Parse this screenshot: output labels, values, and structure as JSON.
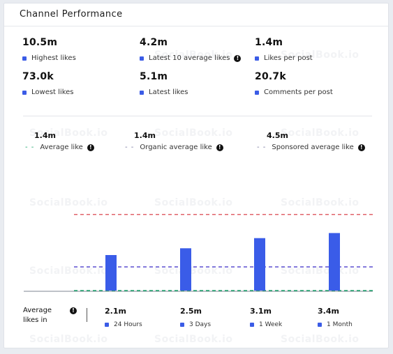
{
  "header": {
    "title": "Channel Performance"
  },
  "stats": [
    {
      "value": "10.5m",
      "label": "Highest likes",
      "info": false
    },
    {
      "value": "4.2m",
      "label": "Latest 10 average likes",
      "info": true
    },
    {
      "value": "1.4m",
      "label": "Likes per post",
      "info": false
    },
    {
      "value": "73.0k",
      "label": "Lowest likes",
      "info": false
    },
    {
      "value": "5.1m",
      "label": "Latest likes",
      "info": false
    },
    {
      "value": "20.7k",
      "label": "Comments per post",
      "info": false
    }
  ],
  "legend": [
    {
      "value": "1.4m",
      "label": "Average like",
      "color": "#1aa46a"
    },
    {
      "value": "1.4m",
      "label": "Organic average like",
      "color": "#7a7aa0"
    },
    {
      "value": "4.5m",
      "label": "Sponsored average like",
      "color": "#7a7aa0"
    }
  ],
  "info_glyph": "!",
  "dash_glyph": "- -",
  "avg_label": "Average likes in",
  "watermark": "SocialBook.io",
  "periods": [
    {
      "value": "2.1m",
      "label": "24 Hours"
    },
    {
      "value": "2.5m",
      "label": "3 Days"
    },
    {
      "value": "3.1m",
      "label": "1 Week"
    },
    {
      "value": "3.4m",
      "label": "1 Month"
    }
  ],
  "chart_data": {
    "type": "bar",
    "categories": [
      "24 Hours",
      "3 Days",
      "1 Week",
      "1 Month"
    ],
    "values": [
      2.1,
      2.5,
      3.1,
      3.4
    ],
    "reference_lines": [
      {
        "value": 4.5,
        "color": "#e0636a"
      },
      {
        "value": 1.4,
        "color": "#5b4fd1"
      },
      {
        "value": 0,
        "color": "#1aa46a"
      }
    ],
    "bar_color": "#3a5ce8",
    "ylim": [
      0,
      5.6
    ]
  }
}
